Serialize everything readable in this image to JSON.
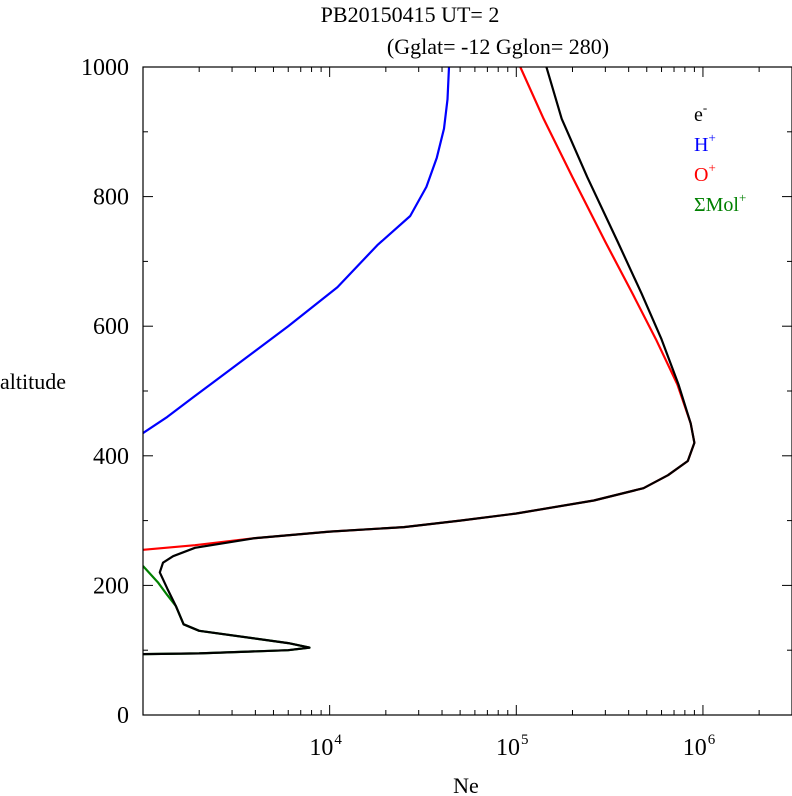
{
  "chart_data": {
    "type": "line",
    "title": "PB20150415   UT=  2",
    "subtitle": "(Gglat= -12   Gglon=  280)",
    "xlabel": "Ne",
    "ylabel": "altitude",
    "x_scale": "log",
    "xlim": [
      1000,
      3000000
    ],
    "ylim": [
      0,
      1000
    ],
    "y_ticks": [
      0,
      200,
      400,
      600,
      800,
      1000
    ],
    "x_ticks": [
      {
        "value": 10000,
        "base": "10",
        "exp": "4"
      },
      {
        "value": 100000,
        "base": "10",
        "exp": "5"
      },
      {
        "value": 1000000,
        "base": "10",
        "exp": "6"
      }
    ],
    "legend_position": "top-right",
    "grid": false,
    "series": [
      {
        "name": "H",
        "sup": "+",
        "color": "#0000ff",
        "points": [
          [
            1000,
            435
          ],
          [
            1350,
            460
          ],
          [
            1850,
            490
          ],
          [
            3000,
            535
          ],
          [
            6000,
            600
          ],
          [
            11000,
            660
          ],
          [
            18000,
            725
          ],
          [
            27000,
            770
          ],
          [
            33000,
            815
          ],
          [
            37500,
            860
          ],
          [
            41000,
            905
          ],
          [
            42800,
            950
          ],
          [
            43600,
            1000
          ]
        ]
      },
      {
        "name": "O",
        "sup": "+",
        "color": "#ff0000",
        "points": [
          [
            1000,
            255
          ],
          [
            1900,
            262
          ],
          [
            4000,
            273
          ],
          [
            10000,
            283
          ],
          [
            25000,
            290
          ],
          [
            50000,
            300
          ],
          [
            100000,
            311
          ],
          [
            260000,
            331
          ],
          [
            480000,
            350
          ],
          [
            650000,
            370
          ],
          [
            830000,
            392
          ],
          [
            900000,
            420
          ],
          [
            860000,
            450
          ],
          [
            730000,
            510
          ],
          [
            560000,
            580
          ],
          [
            420000,
            650
          ],
          [
            300000,
            730
          ],
          [
            200000,
            830
          ],
          [
            140000,
            920
          ],
          [
            105000,
            1000
          ]
        ]
      },
      {
        "name": "ΣMol",
        "sup": "+",
        "color": "#008000",
        "points": [
          [
            1000,
            230
          ],
          [
            1200,
            205
          ],
          [
            1350,
            185
          ],
          [
            1500,
            168
          ],
          [
            1650,
            140
          ],
          [
            2000,
            130
          ],
          [
            6000,
            111
          ],
          [
            7800,
            104
          ],
          [
            6000,
            100
          ],
          [
            2000,
            95
          ],
          [
            1000,
            94
          ]
        ]
      },
      {
        "name": "e",
        "sup": "-",
        "color": "#000000",
        "points": [
          [
            1000,
            94
          ],
          [
            2000,
            95
          ],
          [
            6000,
            100
          ],
          [
            7800,
            104
          ],
          [
            6000,
            111
          ],
          [
            2000,
            130
          ],
          [
            1650,
            140
          ],
          [
            1500,
            168
          ],
          [
            1350,
            195
          ],
          [
            1230,
            220
          ],
          [
            1280,
            235
          ],
          [
            1450,
            245
          ],
          [
            1900,
            258
          ],
          [
            4000,
            273
          ],
          [
            10000,
            283
          ],
          [
            25000,
            290
          ],
          [
            50000,
            300
          ],
          [
            100000,
            311
          ],
          [
            260000,
            331
          ],
          [
            480000,
            350
          ],
          [
            650000,
            370
          ],
          [
            830000,
            392
          ],
          [
            900000,
            420
          ],
          [
            860000,
            450
          ],
          [
            740000,
            510
          ],
          [
            600000,
            580
          ],
          [
            470000,
            650
          ],
          [
            350000,
            730
          ],
          [
            240000,
            830
          ],
          [
            175000,
            920
          ],
          [
            145000,
            1000
          ]
        ]
      }
    ]
  }
}
